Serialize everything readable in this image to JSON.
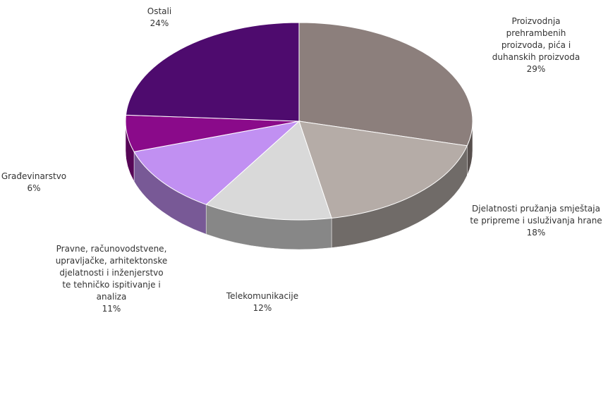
{
  "chart_data": {
    "type": "pie",
    "categories": [
      "Proizvodnja prehrambenih proizvoda, pića i duhanskih proizvoda",
      "Djelatnosti pružanja smještaja te pripreme i usluživanja hrane",
      "Telekomunikacije",
      "Pravne, računovodstvene, upravljačke, arhitektonske djelatnosti i inženjerstvo te tehničko ispitivanje i analiza",
      "Građevinarstvo",
      "Ostali"
    ],
    "values": [
      29,
      18,
      12,
      11,
      6,
      24
    ],
    "value_labels": [
      "29%",
      "18%",
      "12%",
      "11%",
      "6%",
      "24%"
    ],
    "colors": [
      "#8c7f7c",
      "#b5aca7",
      "#d9d9d9",
      "#c190f2",
      "#8a0a8a",
      "#4e0b6e"
    ]
  }
}
